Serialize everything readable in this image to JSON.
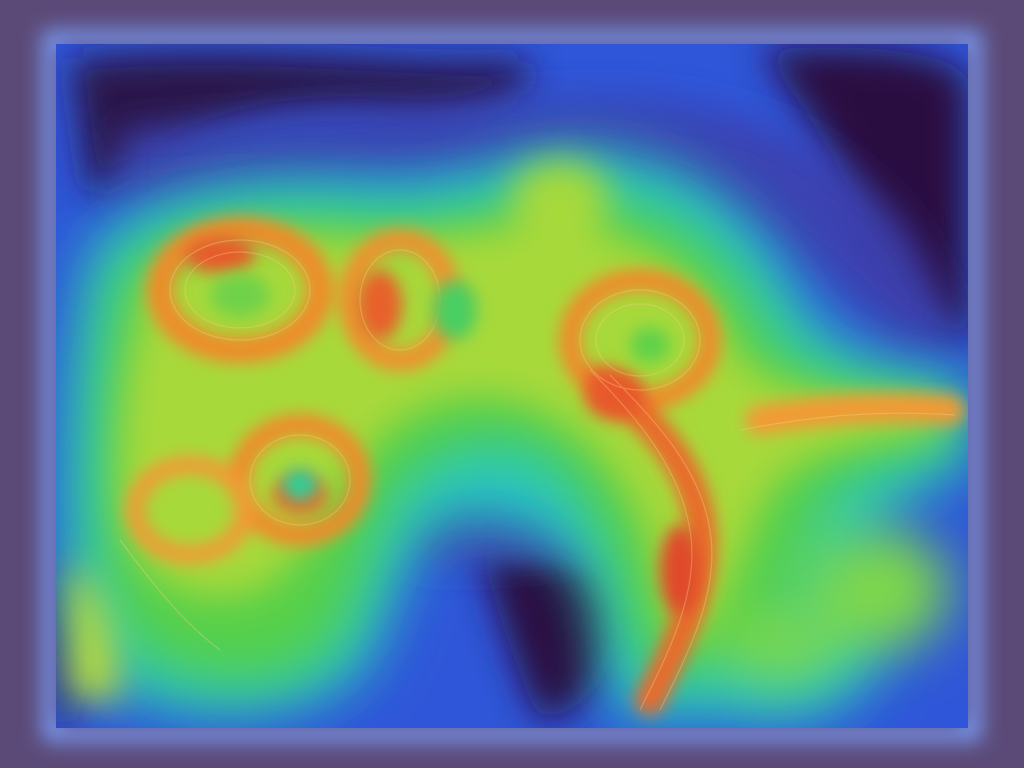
{
  "scene": {
    "subject": "flow-field-heatmap",
    "palette": {
      "frame": "#5b4a78",
      "glow": "#7aa0ff",
      "low": "#2a1040",
      "deep_blue": "#3a3aa0",
      "blue": "#2f6df0",
      "cyan": "#2fd0d8",
      "green": "#3ed26a",
      "yellow_green": "#a8dc2a",
      "orange": "#f08a2a",
      "red_orange": "#e8502a"
    }
  }
}
